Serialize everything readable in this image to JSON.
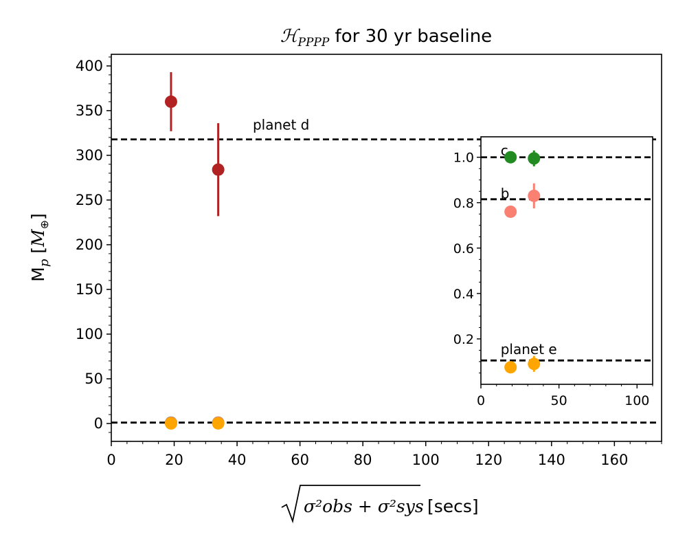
{
  "chart_data": [
    {
      "type": "scatter",
      "title_prefix": "ℋ",
      "title_sub": "PPPP",
      "title_rest": " for 30 yr baseline",
      "xlabel_sqrt_expr": "σ²obs + σ²sys",
      "xlabel_unit": "[secs]",
      "ylabel_main": "M",
      "ylabel_sub": "p",
      "ylabel_unit_open": "[",
      "ylabel_unit_M": "M",
      "ylabel_unit_sub": "⊕",
      "ylabel_unit_close": "]",
      "xlim": [
        0,
        175
      ],
      "ylim": [
        -20,
        413
      ],
      "xticks": [
        0,
        20,
        40,
        60,
        80,
        100,
        120,
        140,
        160
      ],
      "yticks": [
        0,
        50,
        100,
        150,
        200,
        250,
        300,
        350,
        400
      ],
      "hlines": [
        317.8,
        1.0
      ],
      "annotation": {
        "text": "planet d",
        "x": 45,
        "y": 335
      },
      "series": [
        {
          "name": "planet d",
          "color": "#b22222",
          "points": [
            {
              "x": 19,
              "y": 360,
              "yerr_low": 33,
              "yerr_high": 33
            },
            {
              "x": 34,
              "y": 284,
              "yerr_low": 52,
              "yerr_high": 52
            }
          ]
        },
        {
          "name": "planet c",
          "color": "#228b22",
          "points": [
            {
              "x": 19,
              "y": 1.0,
              "yerr_low": 0,
              "yerr_high": 0
            },
            {
              "x": 34,
              "y": 1.0,
              "yerr_low": 0,
              "yerr_high": 0
            }
          ]
        },
        {
          "name": "planet b",
          "color": "#fa8072",
          "points": [
            {
              "x": 19,
              "y": 0.76,
              "yerr_low": 0,
              "yerr_high": 0
            },
            {
              "x": 34,
              "y": 0.83,
              "yerr_low": 0,
              "yerr_high": 0
            }
          ]
        },
        {
          "name": "planet e",
          "color": "#ffa500",
          "points": [
            {
              "x": 19,
              "y": 0.08,
              "yerr_low": 0,
              "yerr_high": 0
            },
            {
              "x": 34,
              "y": 0.1,
              "yerr_low": 0,
              "yerr_high": 0
            }
          ]
        }
      ]
    },
    {
      "type": "scatter",
      "role": "inset",
      "xlim": [
        0,
        110
      ],
      "ylim": [
        0,
        1.09
      ],
      "xticks": [
        0,
        50,
        100
      ],
      "yticks": [
        0.2,
        0.4,
        0.6,
        0.8,
        1.0
      ],
      "ytick_labels": [
        "0.2",
        "0.4",
        "0.6",
        "0.8",
        "1.0"
      ],
      "hlines": [
        1.0,
        0.815,
        0.105
      ],
      "annotations": [
        {
          "text": "c",
          "x": 10,
          "y": 1.03
        },
        {
          "text": "b",
          "x": 10,
          "y": 0.84
        },
        {
          "text": "planet e",
          "x": 10,
          "y": 0.155
        }
      ],
      "series": [
        {
          "name": "planet c",
          "color": "#228b22",
          "points": [
            {
              "x": 19,
              "y": 1.0,
              "yerr_low": 0,
              "yerr_high": 0
            },
            {
              "x": 34,
              "y": 0.995,
              "yerr_low": 0.035,
              "yerr_high": 0.035
            }
          ]
        },
        {
          "name": "planet b",
          "color": "#fa8072",
          "points": [
            {
              "x": 19,
              "y": 0.76,
              "yerr_low": 0,
              "yerr_high": 0
            },
            {
              "x": 34,
              "y": 0.83,
              "yerr_low": 0.055,
              "yerr_high": 0.055
            }
          ]
        },
        {
          "name": "planet e",
          "color": "#ffa500",
          "points": [
            {
              "x": 19,
              "y": 0.075,
              "yerr_low": 0,
              "yerr_high": 0
            },
            {
              "x": 34,
              "y": 0.09,
              "yerr_low": 0.035,
              "yerr_high": 0.035
            }
          ]
        }
      ]
    }
  ]
}
